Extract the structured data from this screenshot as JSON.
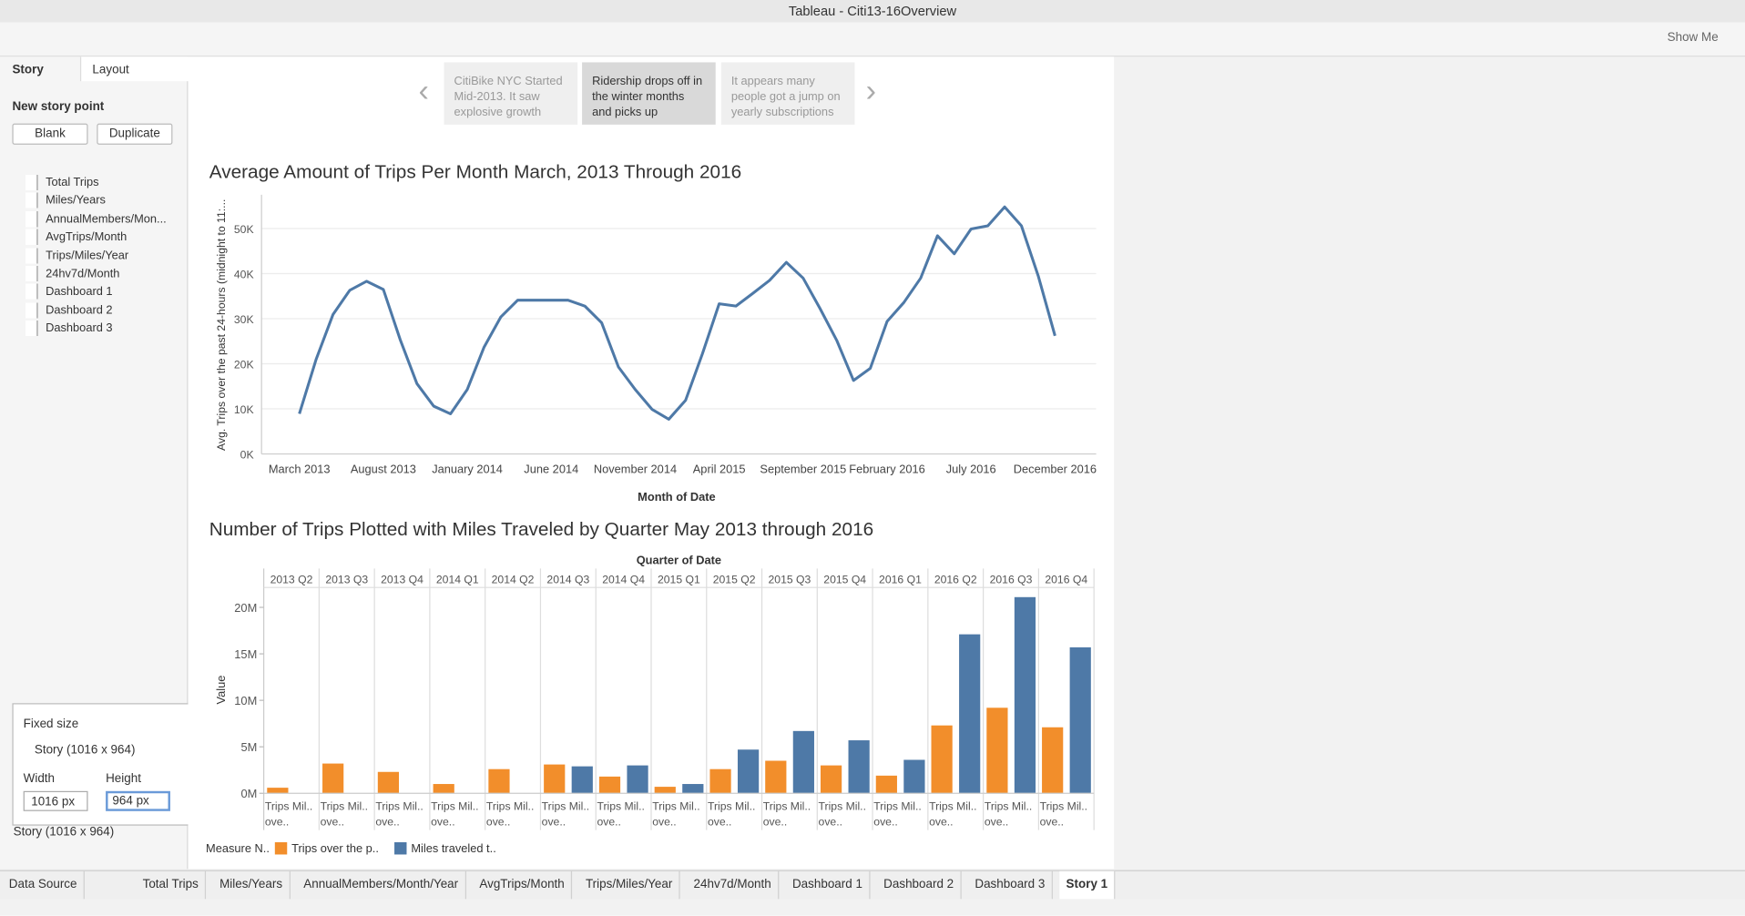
{
  "window_title": "Tableau - Citi13-16Overview",
  "show_me": "Show Me",
  "side_panel": {
    "tabs": [
      "Story",
      "Layout"
    ],
    "new_story_point": "New story point",
    "buttons": [
      "Blank",
      "Duplicate"
    ],
    "sheets": [
      "Total Trips",
      "Miles/Years",
      "AnnualMembers/Mon...",
      "AvgTrips/Month",
      "Trips/Miles/Year",
      "24hv7d/Month",
      "Dashboard 1",
      "Dashboard 2",
      "Dashboard 3"
    ],
    "size_mode": "Fixed size",
    "size_preset": "Story (1016 x 964)",
    "width_label": "Width",
    "height_label": "Height",
    "width_value": "1016 px",
    "height_value": "964 px",
    "size_footer": "Story (1016 x 964)"
  },
  "story_points": [
    "CitiBike NYC Started Mid-2013. It saw explosive growth",
    "Ridership drops off in the winter months and picks up",
    "It appears many people got a jump on yearly subscriptions"
  ],
  "bottom_tabs": [
    "Data Source",
    "Total Trips",
    "Miles/Years",
    "AnnualMembers/Month/Year",
    "AvgTrips/Month",
    "Trips/Miles/Year",
    "24hv7d/Month",
    "Dashboard 1",
    "Dashboard 2",
    "Dashboard 3",
    "Story 1"
  ],
  "chart_data": [
    {
      "type": "line",
      "title": "Average Amount of Trips Per Month March, 2013 Through 2016",
      "x_label": "Month of Date",
      "y_label": "Avg. Trips over the past 24-hours (midnight to 11:...",
      "color": "#4e79a7",
      "grid": true,
      "categories": [
        "March 2013",
        null,
        null,
        null,
        null,
        "August 2013",
        null,
        null,
        null,
        null,
        "January 2014",
        null,
        null,
        null,
        null,
        "June 2014",
        null,
        null,
        null,
        null,
        "November 2014",
        null,
        null,
        null,
        null,
        "April 2015",
        null,
        null,
        null,
        null,
        "September 2015",
        null,
        null,
        null,
        null,
        "February 2016",
        null,
        null,
        null,
        null,
        "July 2016",
        null,
        null,
        null,
        null,
        "December 2016"
      ],
      "values": [
        8900,
        21000,
        30900,
        36300,
        38300,
        36500,
        25400,
        15600,
        10600,
        8900,
        14300,
        23700,
        30400,
        34100,
        34100,
        34100,
        34100,
        32800,
        29100,
        19300,
        14300,
        9900,
        7700,
        11900,
        22200,
        33300,
        32800,
        35600,
        38500,
        42500,
        39000,
        32300,
        25200,
        16300,
        19000,
        29400,
        33600,
        39000,
        48400,
        44400,
        49900,
        50600,
        54800,
        50600,
        39500,
        26200
      ],
      "ylim": [
        0,
        57500
      ],
      "yticks": [
        {
          "value": 0,
          "label": "0K"
        },
        {
          "value": 10000,
          "label": "10K"
        },
        {
          "value": 20000,
          "label": "20K"
        },
        {
          "value": 30000,
          "label": "30K"
        },
        {
          "value": 40000,
          "label": "40K"
        },
        {
          "value": 50000,
          "label": "50K"
        }
      ]
    },
    {
      "type": "bar",
      "title": "Number of Trips Plotted with Miles Traveled by Quarter May 2013 through 2016",
      "column_header": "Quarter of Date",
      "y_label": "Value",
      "legend_title": "Measure N..",
      "pane_labels": [
        "Trips Mil..",
        "ove.."
      ],
      "categories": [
        "2013 Q2",
        "2013 Q3",
        "2013 Q4",
        "2014 Q1",
        "2014 Q2",
        "2014 Q3",
        "2014 Q4",
        "2015 Q1",
        "2015 Q2",
        "2015 Q3",
        "2015 Q4",
        "2016 Q1",
        "2016 Q2",
        "2016 Q3",
        "2016 Q4"
      ],
      "series": [
        {
          "name": "Trips over the p..",
          "color": "#f28e2b",
          "values": [
            600000,
            3200000,
            2300000,
            1000000,
            2600000,
            3100000,
            1800000,
            700000,
            2600000,
            3500000,
            3000000,
            1900000,
            7300000,
            9200000,
            7100000
          ]
        },
        {
          "name": "Miles traveled t..",
          "color": "#4e79a7",
          "values": [
            null,
            null,
            null,
            null,
            null,
            2900000,
            3000000,
            1000000,
            4700000,
            6700000,
            5700000,
            3600000,
            17100000,
            21100000,
            15700000
          ]
        }
      ],
      "ylim": [
        0,
        21900000
      ],
      "yticks": [
        {
          "value": 0,
          "label": "0M"
        },
        {
          "value": 5000000,
          "label": "5M"
        },
        {
          "value": 10000000,
          "label": "10M"
        },
        {
          "value": 15000000,
          "label": "15M"
        },
        {
          "value": 20000000,
          "label": "20M"
        }
      ],
      "grid": false
    }
  ]
}
